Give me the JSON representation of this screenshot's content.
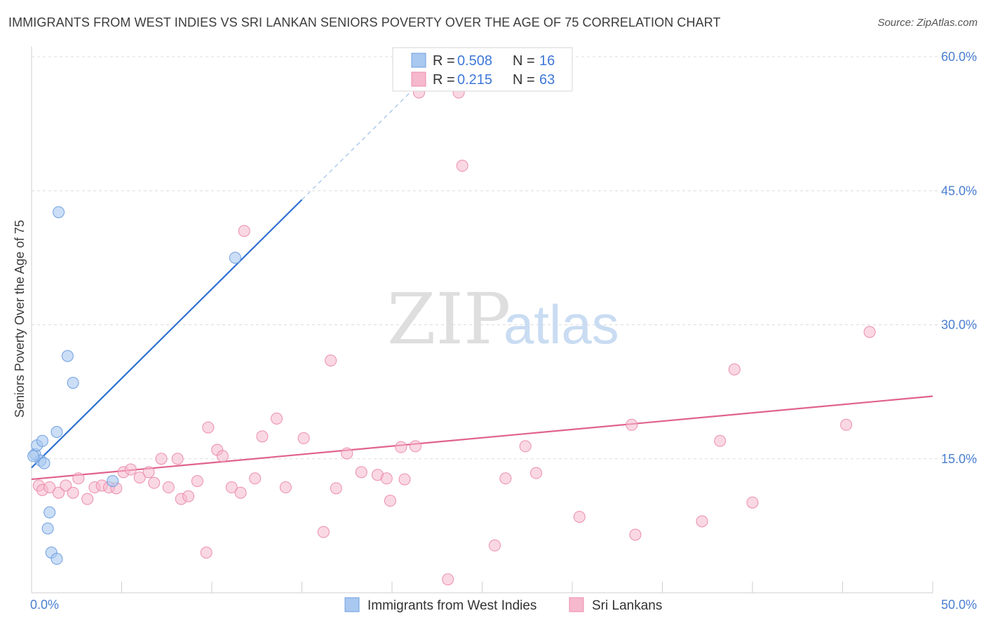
{
  "title": "IMMIGRANTS FROM WEST INDIES VS SRI LANKAN SENIORS POVERTY OVER THE AGE OF 75 CORRELATION CHART",
  "source": "Source: ZipAtlas.com",
  "watermark": {
    "zip": "ZIP",
    "atlas": "atlas"
  },
  "legend": {
    "rows": [
      {
        "r_label": "R = ",
        "r_value": "0.508",
        "n_label": "N = ",
        "n_value": "16"
      },
      {
        "r_label": "R = ",
        "r_value": "0.215",
        "n_label": "N = ",
        "n_value": "63"
      }
    ]
  },
  "bottom_legend": [
    "Immigrants from West Indies",
    "Sri Lankans"
  ],
  "chart_data": {
    "type": "scatter",
    "title": "IMMIGRANTS FROM WEST INDIES VS SRI LANKAN SENIORS POVERTY OVER THE AGE OF 75 CORRELATION CHART",
    "xlabel": "",
    "ylabel": "Seniors Poverty Over the Age of 75",
    "xlim": [
      0,
      50
    ],
    "ylim": [
      0,
      60
    ],
    "x_tick_labels": [
      "0.0%",
      "50.0%"
    ],
    "y_ticks": [
      15,
      30,
      45,
      60
    ],
    "y_tick_labels": [
      "15.0%",
      "30.0%",
      "45.0%",
      "60.0%"
    ],
    "grid": true,
    "legend_position": "top-center",
    "colors": {
      "west_indies_fill": "#a9c8f0",
      "west_indies_stroke": "#6f9fe0",
      "west_indies_line": "#2f6fd0",
      "sri_lankans_fill": "#f6b8cc",
      "sri_lankans_stroke": "#ec8eac",
      "sri_lankans_line": "#e0628f",
      "grid": "#dcdcdc",
      "tick_label": "#4a7fd0"
    },
    "series": [
      {
        "name": "Immigrants from West Indies",
        "r": 0.508,
        "n": 16,
        "trend": {
          "x": [
            0.0,
            15.0
          ],
          "y": [
            14.0,
            44.0
          ]
        },
        "trend_extension": {
          "x": [
            15.0,
            21.8
          ],
          "y": [
            44.0,
            57.6
          ]
        },
        "points": [
          [
            0.2,
            15.5
          ],
          [
            0.3,
            16.5
          ],
          [
            0.5,
            14.8
          ],
          [
            0.6,
            17.0
          ],
          [
            0.7,
            14.5
          ],
          [
            1.0,
            9.0
          ],
          [
            0.9,
            7.2
          ],
          [
            1.4,
            18.0
          ],
          [
            1.5,
            42.6
          ],
          [
            2.0,
            26.5
          ],
          [
            2.3,
            23.5
          ],
          [
            1.1,
            4.5
          ],
          [
            1.4,
            3.8
          ],
          [
            11.3,
            37.5
          ],
          [
            4.5,
            12.5
          ],
          [
            0.1,
            15.3
          ]
        ]
      },
      {
        "name": "Sri Lankans",
        "r": 0.215,
        "n": 63,
        "trend": {
          "x": [
            0.0,
            50.0
          ],
          "y": [
            12.7,
            22.0
          ]
        },
        "points": [
          [
            0.4,
            12.0
          ],
          [
            0.6,
            11.5
          ],
          [
            1.0,
            11.8
          ],
          [
            1.5,
            11.2
          ],
          [
            1.9,
            12.0
          ],
          [
            2.3,
            11.2
          ],
          [
            2.6,
            12.8
          ],
          [
            3.1,
            10.5
          ],
          [
            3.5,
            11.8
          ],
          [
            3.9,
            12.0
          ],
          [
            4.3,
            11.8
          ],
          [
            4.7,
            11.7
          ],
          [
            5.1,
            13.5
          ],
          [
            5.5,
            13.8
          ],
          [
            6.0,
            12.9
          ],
          [
            6.5,
            13.5
          ],
          [
            6.8,
            12.3
          ],
          [
            7.2,
            15.0
          ],
          [
            7.6,
            11.8
          ],
          [
            8.1,
            15.0
          ],
          [
            8.3,
            10.5
          ],
          [
            8.7,
            10.8
          ],
          [
            9.2,
            12.5
          ],
          [
            9.7,
            4.5
          ],
          [
            9.8,
            18.5
          ],
          [
            10.3,
            16.0
          ],
          [
            10.6,
            15.3
          ],
          [
            11.1,
            11.8
          ],
          [
            11.6,
            11.2
          ],
          [
            11.8,
            40.5
          ],
          [
            12.4,
            12.8
          ],
          [
            12.8,
            17.5
          ],
          [
            13.6,
            19.5
          ],
          [
            14.1,
            11.8
          ],
          [
            15.1,
            17.3
          ],
          [
            16.2,
            6.8
          ],
          [
            16.6,
            26.0
          ],
          [
            16.9,
            11.7
          ],
          [
            17.5,
            15.6
          ],
          [
            18.3,
            13.5
          ],
          [
            19.2,
            13.2
          ],
          [
            19.7,
            12.8
          ],
          [
            19.9,
            10.3
          ],
          [
            20.5,
            16.3
          ],
          [
            20.7,
            12.7
          ],
          [
            21.3,
            16.4
          ],
          [
            21.5,
            56.0
          ],
          [
            23.7,
            56.0
          ],
          [
            23.9,
            47.8
          ],
          [
            25.7,
            5.3
          ],
          [
            26.3,
            12.8
          ],
          [
            27.4,
            16.4
          ],
          [
            28.0,
            13.4
          ],
          [
            30.4,
            8.5
          ],
          [
            33.3,
            18.8
          ],
          [
            33.5,
            6.5
          ],
          [
            37.2,
            8.0
          ],
          [
            38.2,
            17.0
          ],
          [
            39.0,
            25.0
          ],
          [
            40.0,
            10.1
          ],
          [
            45.2,
            18.8
          ],
          [
            46.5,
            29.2
          ],
          [
            23.1,
            1.5
          ]
        ]
      }
    ]
  }
}
